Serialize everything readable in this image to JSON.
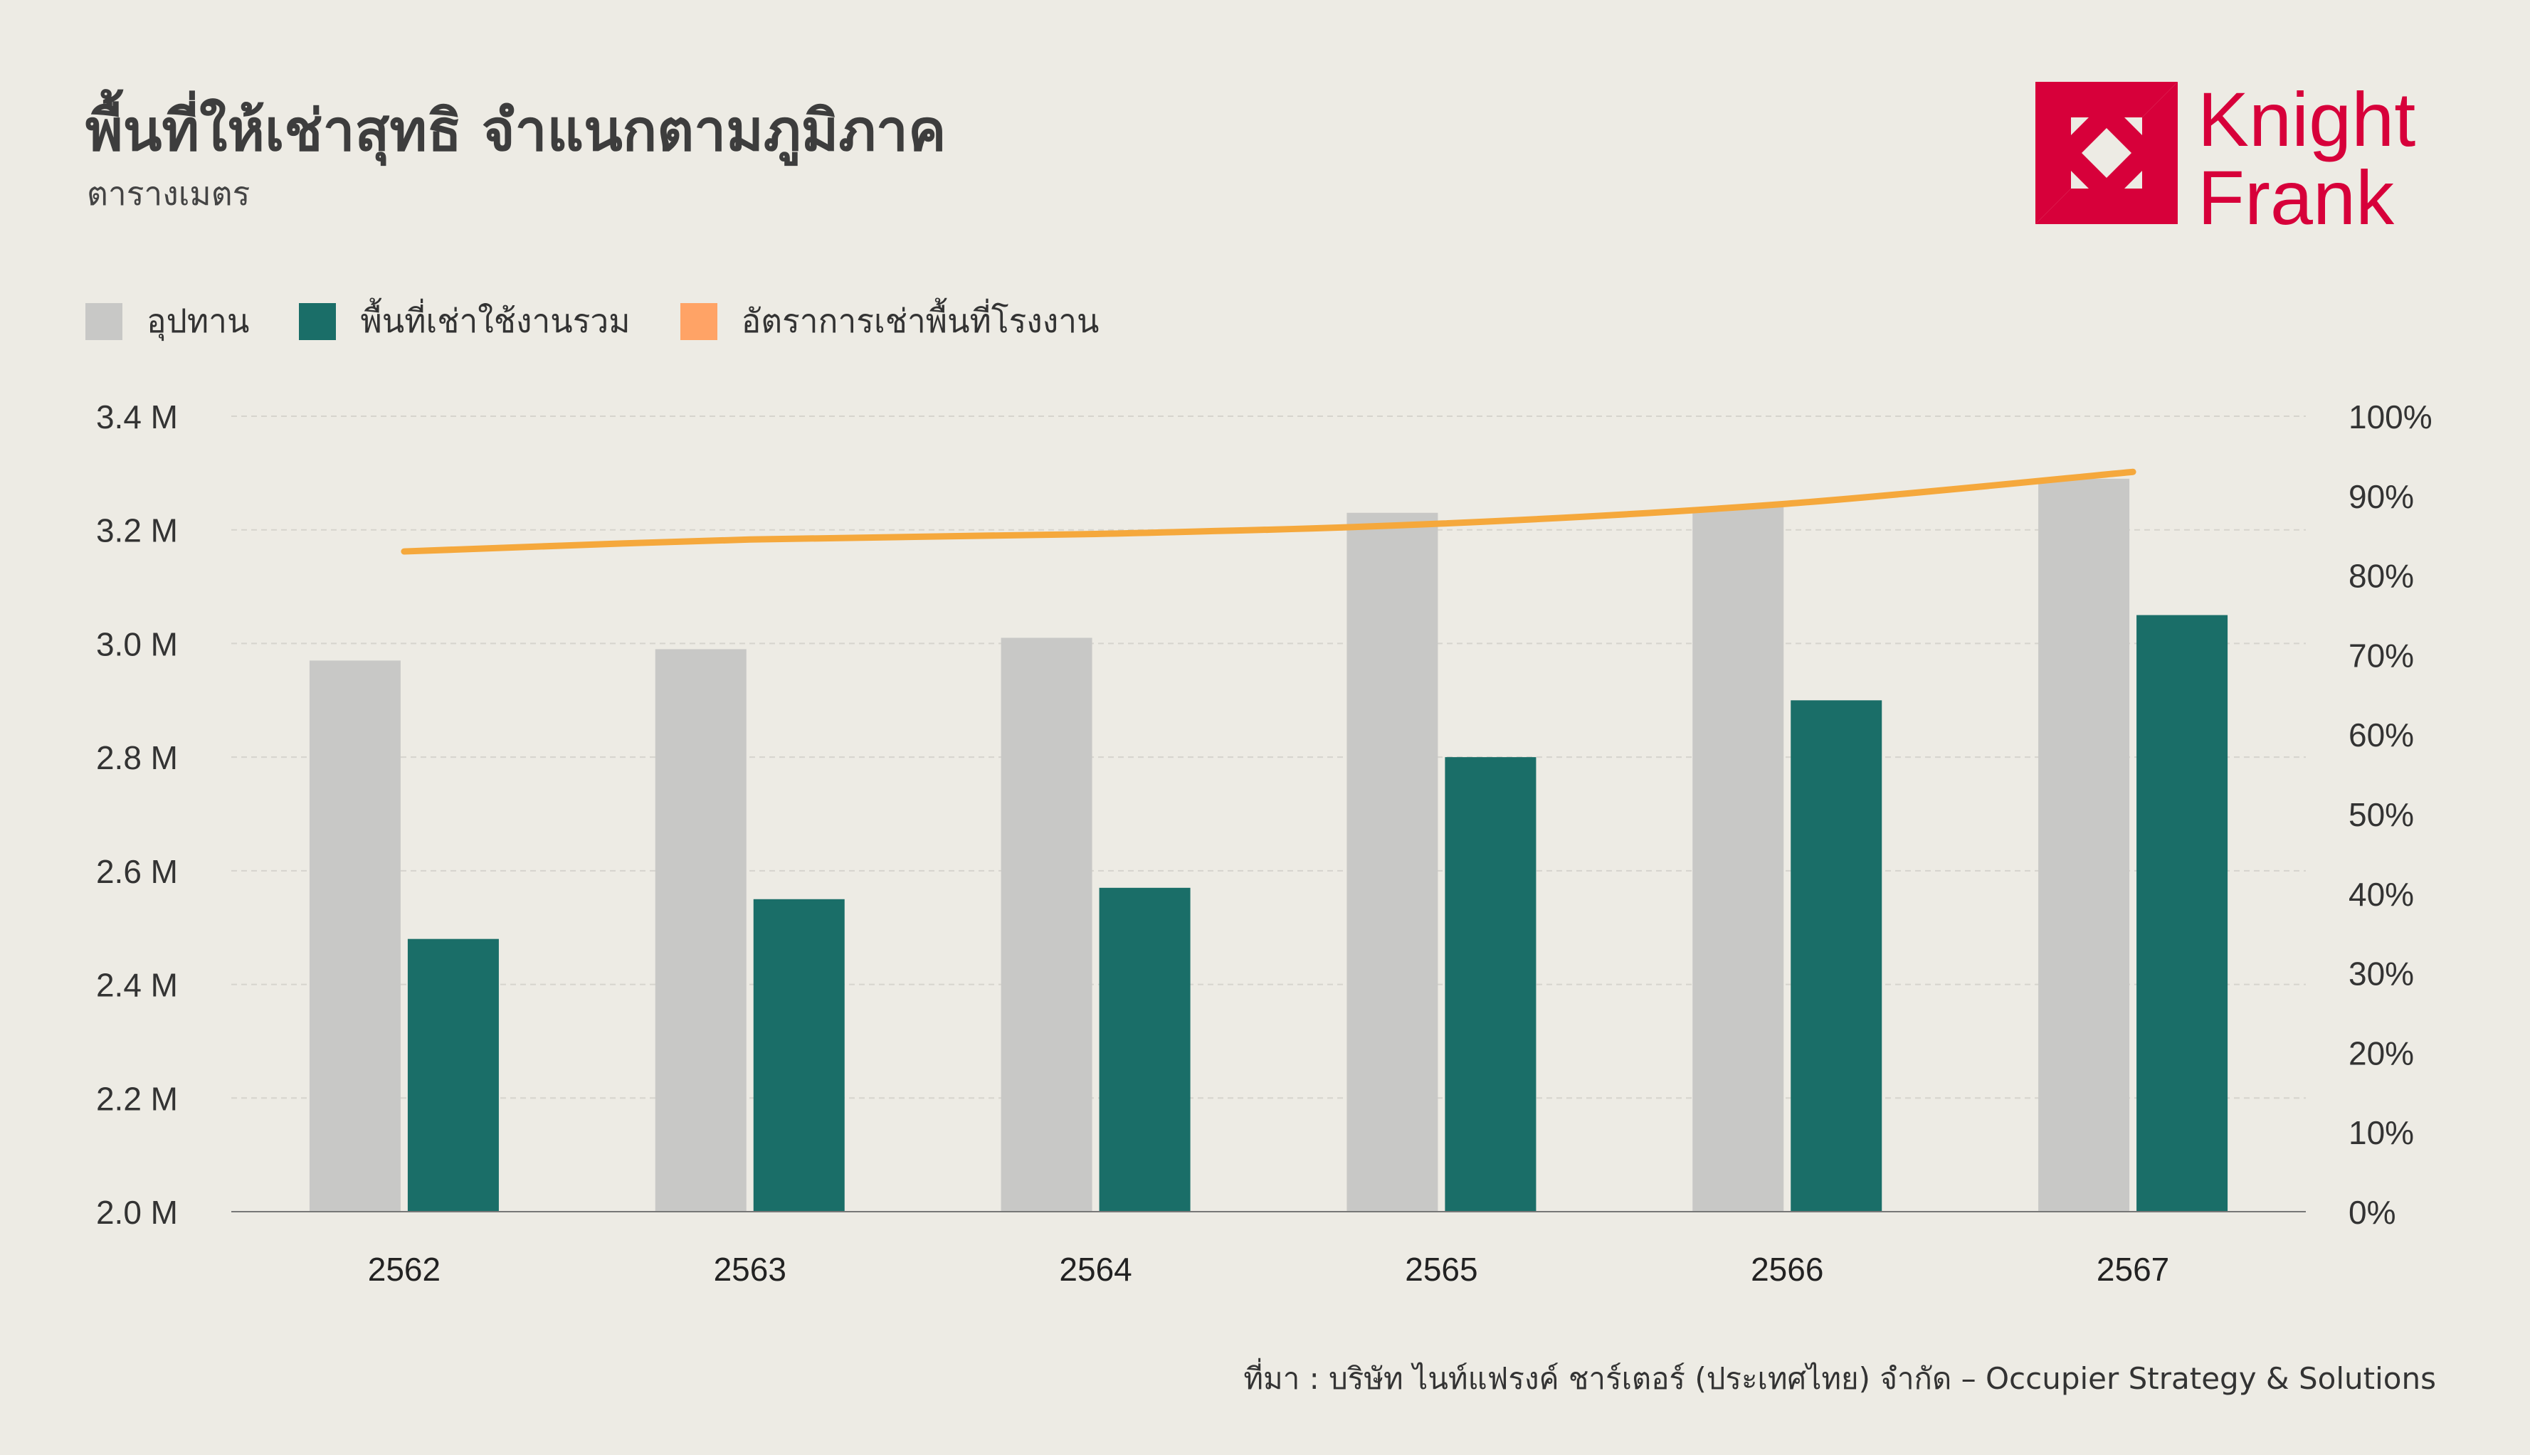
{
  "title": "พื้นที่ให้เช่าสุทธิ จำแนกตามภูมิภาค",
  "subtitle": "ตารางเมตร",
  "source": "ที่มา : บริษัท ไนท์แฟรงค์ ชาร์เตอร์ (ประเทศไทย) จำกัด – Occupier Strategy & Solutions",
  "logo": {
    "line1": "Knight",
    "line2": "Frank",
    "color": "#d7003a"
  },
  "colors": {
    "supply": "#c8c8c6",
    "occupied": "#1a6e68",
    "occupancy_legend": "#ffa366",
    "occupancy_line": "#f5a83c",
    "background": "#edebe4"
  },
  "legend": [
    {
      "label": "อุปทาน",
      "color": "#c8c8c6"
    },
    {
      "label": "พื้นที่เช่าใช้งานรวม",
      "color": "#1a6e68"
    },
    {
      "label": "อัตราการเช่าพื้นที่โรงงาน",
      "color": "#ffa366"
    }
  ],
  "chart_data": {
    "type": "bar",
    "categories": [
      "2562",
      "2563",
      "2564",
      "2565",
      "2566",
      "2567"
    ],
    "series": [
      {
        "name": "อุปทาน",
        "type": "bar",
        "axis": "left",
        "values": [
          2.97,
          2.99,
          3.01,
          3.23,
          3.24,
          3.29
        ]
      },
      {
        "name": "พื้นที่เช่าใช้งานรวม",
        "type": "bar",
        "axis": "left",
        "values": [
          2.48,
          2.55,
          2.57,
          2.8,
          2.9,
          3.05
        ]
      },
      {
        "name": "อัตราการเช่าพื้นที่โรงงาน",
        "type": "line",
        "axis": "right",
        "values": [
          83,
          84.5,
          85.2,
          86.5,
          89,
          93
        ]
      }
    ],
    "ylim": [
      2.0,
      3.4
    ],
    "y_ticks": [
      2.0,
      2.2,
      2.4,
      2.6,
      2.8,
      3.0,
      3.2,
      3.4
    ],
    "y_tick_labels": [
      "2.0 M",
      "2.2 M",
      "2.4 M",
      "2.6 M",
      "2.8 M",
      "3.0 M",
      "3.2 M",
      "3.4 M"
    ],
    "y2lim": [
      0,
      100
    ],
    "y2_ticks": [
      0,
      10,
      20,
      30,
      40,
      50,
      60,
      70,
      80,
      90,
      100
    ],
    "y2_tick_labels": [
      "0%",
      "10%",
      "20%",
      "30%",
      "40%",
      "50%",
      "60%",
      "70%",
      "80%",
      "90%",
      "100%"
    ],
    "grid": true,
    "legend_position": "top-left"
  }
}
